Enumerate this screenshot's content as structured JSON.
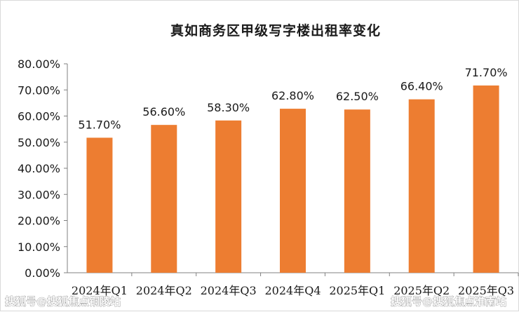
{
  "chart_data": {
    "type": "bar",
    "title": "真如商务区甲级写字楼出租率变化",
    "categories": [
      "2024年Q1",
      "2024年Q2",
      "2024年Q3",
      "2024年Q4",
      "2025年Q1",
      "2025年Q2",
      "2025年Q3"
    ],
    "values": [
      51.7,
      56.6,
      58.3,
      62.8,
      62.5,
      66.4,
      71.7
    ],
    "data_labels": [
      "51.70%",
      "56.60%",
      "58.30%",
      "62.80%",
      "62.50%",
      "66.40%",
      "71.70%"
    ],
    "y_ticks": [
      0,
      10,
      20,
      30,
      40,
      50,
      60,
      70,
      80
    ],
    "y_tick_labels": [
      "0.00%",
      "10.00%",
      "20.00%",
      "30.00%",
      "40.00%",
      "50.00%",
      "60.00%",
      "70.00%",
      "80.00%"
    ],
    "ylim": [
      0,
      80
    ],
    "xlabel": "",
    "ylabel": "",
    "grid": false,
    "legend": "none",
    "bar_color": "#ED7D31"
  },
  "watermarks": {
    "left": "搜狐号@搜狐焦点铜陵站",
    "right": "搜狐号@搜狐焦点淮南站"
  }
}
